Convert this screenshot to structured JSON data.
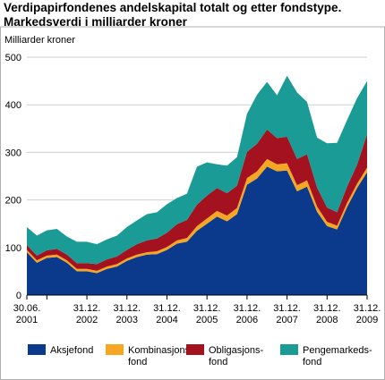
{
  "chart_data": {
    "type": "area",
    "stacked": true,
    "title_line1": "Verdipapirfondenes andelskapital totalt og etter fondstype.",
    "title_line2": "Markedsverdi i milliarder kroner",
    "ylabel": "Milliarder kroner",
    "ylim": [
      0,
      500
    ],
    "yticks": [
      0,
      100,
      200,
      300,
      400,
      500
    ],
    "grid": true,
    "legend_position": "bottom",
    "xtick_labels": [
      {
        "line1": "30.06.",
        "line2": "2001"
      },
      {
        "line1": "",
        "line2": ""
      },
      {
        "line1": "31.12.",
        "line2": "2002"
      },
      {
        "line1": "31.12.",
        "line2": "2003"
      },
      {
        "line1": "31.12.",
        "line2": "2004"
      },
      {
        "line1": "31.12.",
        "line2": "2005"
      },
      {
        "line1": "31.12.",
        "line2": "2006"
      },
      {
        "line1": "31.12.",
        "line2": "2007"
      },
      {
        "line1": "31.12.",
        "line2": "2008"
      },
      {
        "line1": "31.12.",
        "line2": "2009"
      }
    ],
    "x": [
      "2001Q2",
      "2001Q3",
      "2001Q4",
      "2002Q1",
      "2002Q2",
      "2002Q3",
      "2002Q4",
      "2003Q1",
      "2003Q2",
      "2003Q3",
      "2003Q4",
      "2004Q1",
      "2004Q2",
      "2004Q3",
      "2004Q4",
      "2005Q1",
      "2005Q2",
      "2005Q3",
      "2005Q4",
      "2006Q1",
      "2006Q2",
      "2006Q3",
      "2006Q4",
      "2007Q1",
      "2007Q2",
      "2007Q3",
      "2007Q4",
      "2008Q1",
      "2008Q2",
      "2008Q3",
      "2008Q4",
      "2009Q1",
      "2009Q2",
      "2009Q3",
      "2009Q4"
    ],
    "series": [
      {
        "name": "Aksjefond",
        "color": "#0b3a8c",
        "values": [
          90,
          68,
          78,
          80,
          68,
          50,
          50,
          46,
          55,
          60,
          72,
          80,
          85,
          86,
          95,
          108,
          112,
          135,
          150,
          165,
          155,
          170,
          232,
          245,
          270,
          260,
          262,
          218,
          228,
          175,
          145,
          138,
          185,
          225,
          258
        ]
      },
      {
        "name": "Kombinasjonsfond",
        "color": "#f5a623",
        "values": [
          5,
          5,
          5,
          5,
          5,
          5,
          5,
          5,
          5,
          5,
          5,
          5,
          5,
          6,
          6,
          7,
          8,
          10,
          11,
          12,
          12,
          13,
          14,
          15,
          16,
          15,
          15,
          13,
          13,
          11,
          9,
          8,
          9,
          9,
          10
        ]
      },
      {
        "name": "Obligasjonsfond",
        "color": "#a3121e",
        "values": [
          10,
          10,
          11,
          12,
          12,
          12,
          12,
          14,
          15,
          16,
          18,
          22,
          25,
          27,
          30,
          34,
          38,
          45,
          48,
          48,
          47,
          47,
          55,
          58,
          62,
          55,
          56,
          55,
          55,
          40,
          30,
          28,
          34,
          40,
          70
        ]
      },
      {
        "name": "Pengemarkedsfond",
        "color": "#1b9b96",
        "values": [
          38,
          42,
          42,
          42,
          38,
          45,
          45,
          42,
          42,
          44,
          48,
          50,
          55,
          55,
          60,
          55,
          55,
          80,
          70,
          50,
          58,
          60,
          80,
          103,
          100,
          90,
          128,
          140,
          110,
          105,
          135,
          146,
          140,
          140,
          112
        ]
      }
    ],
    "legend": [
      {
        "line1": "Aksjefond",
        "line2": ""
      },
      {
        "line1": "Kombinasjons-",
        "line2": "fond"
      },
      {
        "line1": "Obligasjons-",
        "line2": "fond"
      },
      {
        "line1": "Pengemarkeds-",
        "line2": "fond"
      }
    ]
  }
}
